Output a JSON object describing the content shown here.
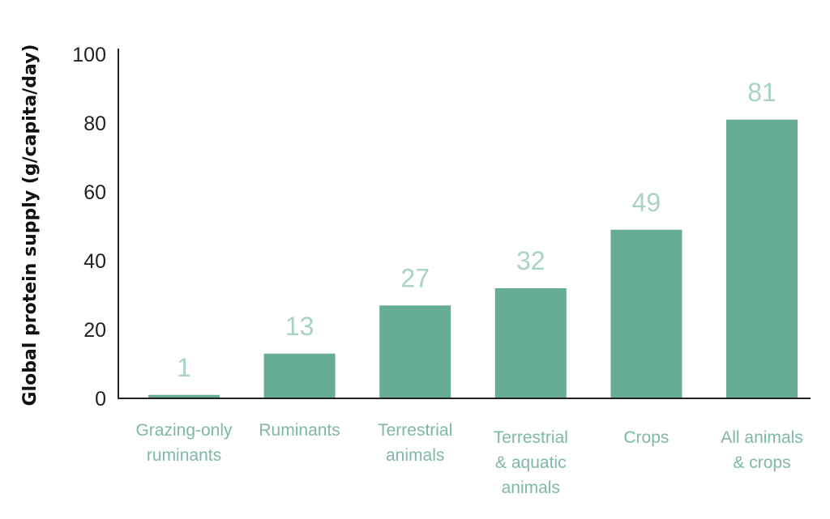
{
  "chart_data": {
    "type": "bar",
    "title": "",
    "xlabel": "",
    "ylabel": "Global protein supply (g/capita/day)",
    "ylim": [
      0,
      100
    ],
    "yticks": [
      0,
      20,
      40,
      60,
      80,
      100
    ],
    "grid": false,
    "categories": [
      [
        "Grazing-only",
        "ruminants"
      ],
      [
        "Ruminants"
      ],
      [
        "Terrestrial",
        "animals"
      ],
      [
        "Terrestrial",
        "& aquatic",
        "animals"
      ],
      [
        "Crops"
      ],
      [
        "All animals",
        "& crops"
      ]
    ],
    "values": [
      1,
      13,
      27,
      32,
      49,
      81
    ],
    "data_labels": [
      "1",
      "13",
      "27",
      "32",
      "49",
      "81"
    ],
    "colors": {
      "bar": "#67ad95",
      "data_label": "#a9d3c3",
      "category_label": "#7fb8a3",
      "axis": "#222222"
    }
  }
}
